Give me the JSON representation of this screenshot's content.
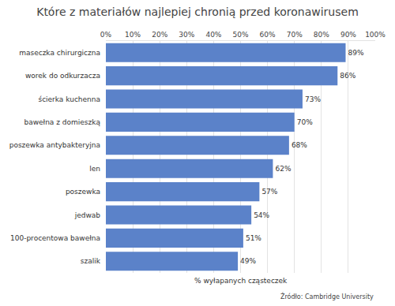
{
  "chart_data": {
    "type": "bar",
    "orientation": "horizontal",
    "title": "Które z materiałów najlepiej chronią przed koronawirusem",
    "xlabel": "% wyłapanych cząsteczek",
    "annotations": [
      "Źródło: Cambridge University"
    ],
    "categories": [
      "maseczka chirurgiczna",
      "worek do odkurzacza",
      "ścierka kuchenna",
      "bawełna z domieszką",
      "poszewka antybakteryjna",
      "len",
      "poszewka",
      "jedwab",
      "100-procentowa bawełna",
      "szalik"
    ],
    "values": [
      89,
      86,
      73,
      70,
      68,
      62,
      57,
      54,
      51,
      49
    ],
    "value_labels": [
      "89%",
      "86%",
      "73%",
      "70%",
      "68%",
      "62%",
      "57%",
      "54%",
      "51%",
      "49%"
    ],
    "data_labels": true,
    "color": "#5b82c9",
    "xlim": [
      0,
      100
    ],
    "xticks": [
      {
        "value": 0,
        "label": "0%"
      },
      {
        "value": 10,
        "label": "10%"
      },
      {
        "value": 20,
        "label": "20%"
      },
      {
        "value": 30,
        "label": "30%"
      },
      {
        "value": 40,
        "label": "40%"
      },
      {
        "value": 50,
        "label": "50%"
      },
      {
        "value": 60,
        "label": "60%"
      },
      {
        "value": 70,
        "label": "70%"
      },
      {
        "value": 80,
        "label": "80%"
      },
      {
        "value": 90,
        "label": "90%"
      },
      {
        "value": 100,
        "label": "100%"
      }
    ],
    "grid": true
  }
}
